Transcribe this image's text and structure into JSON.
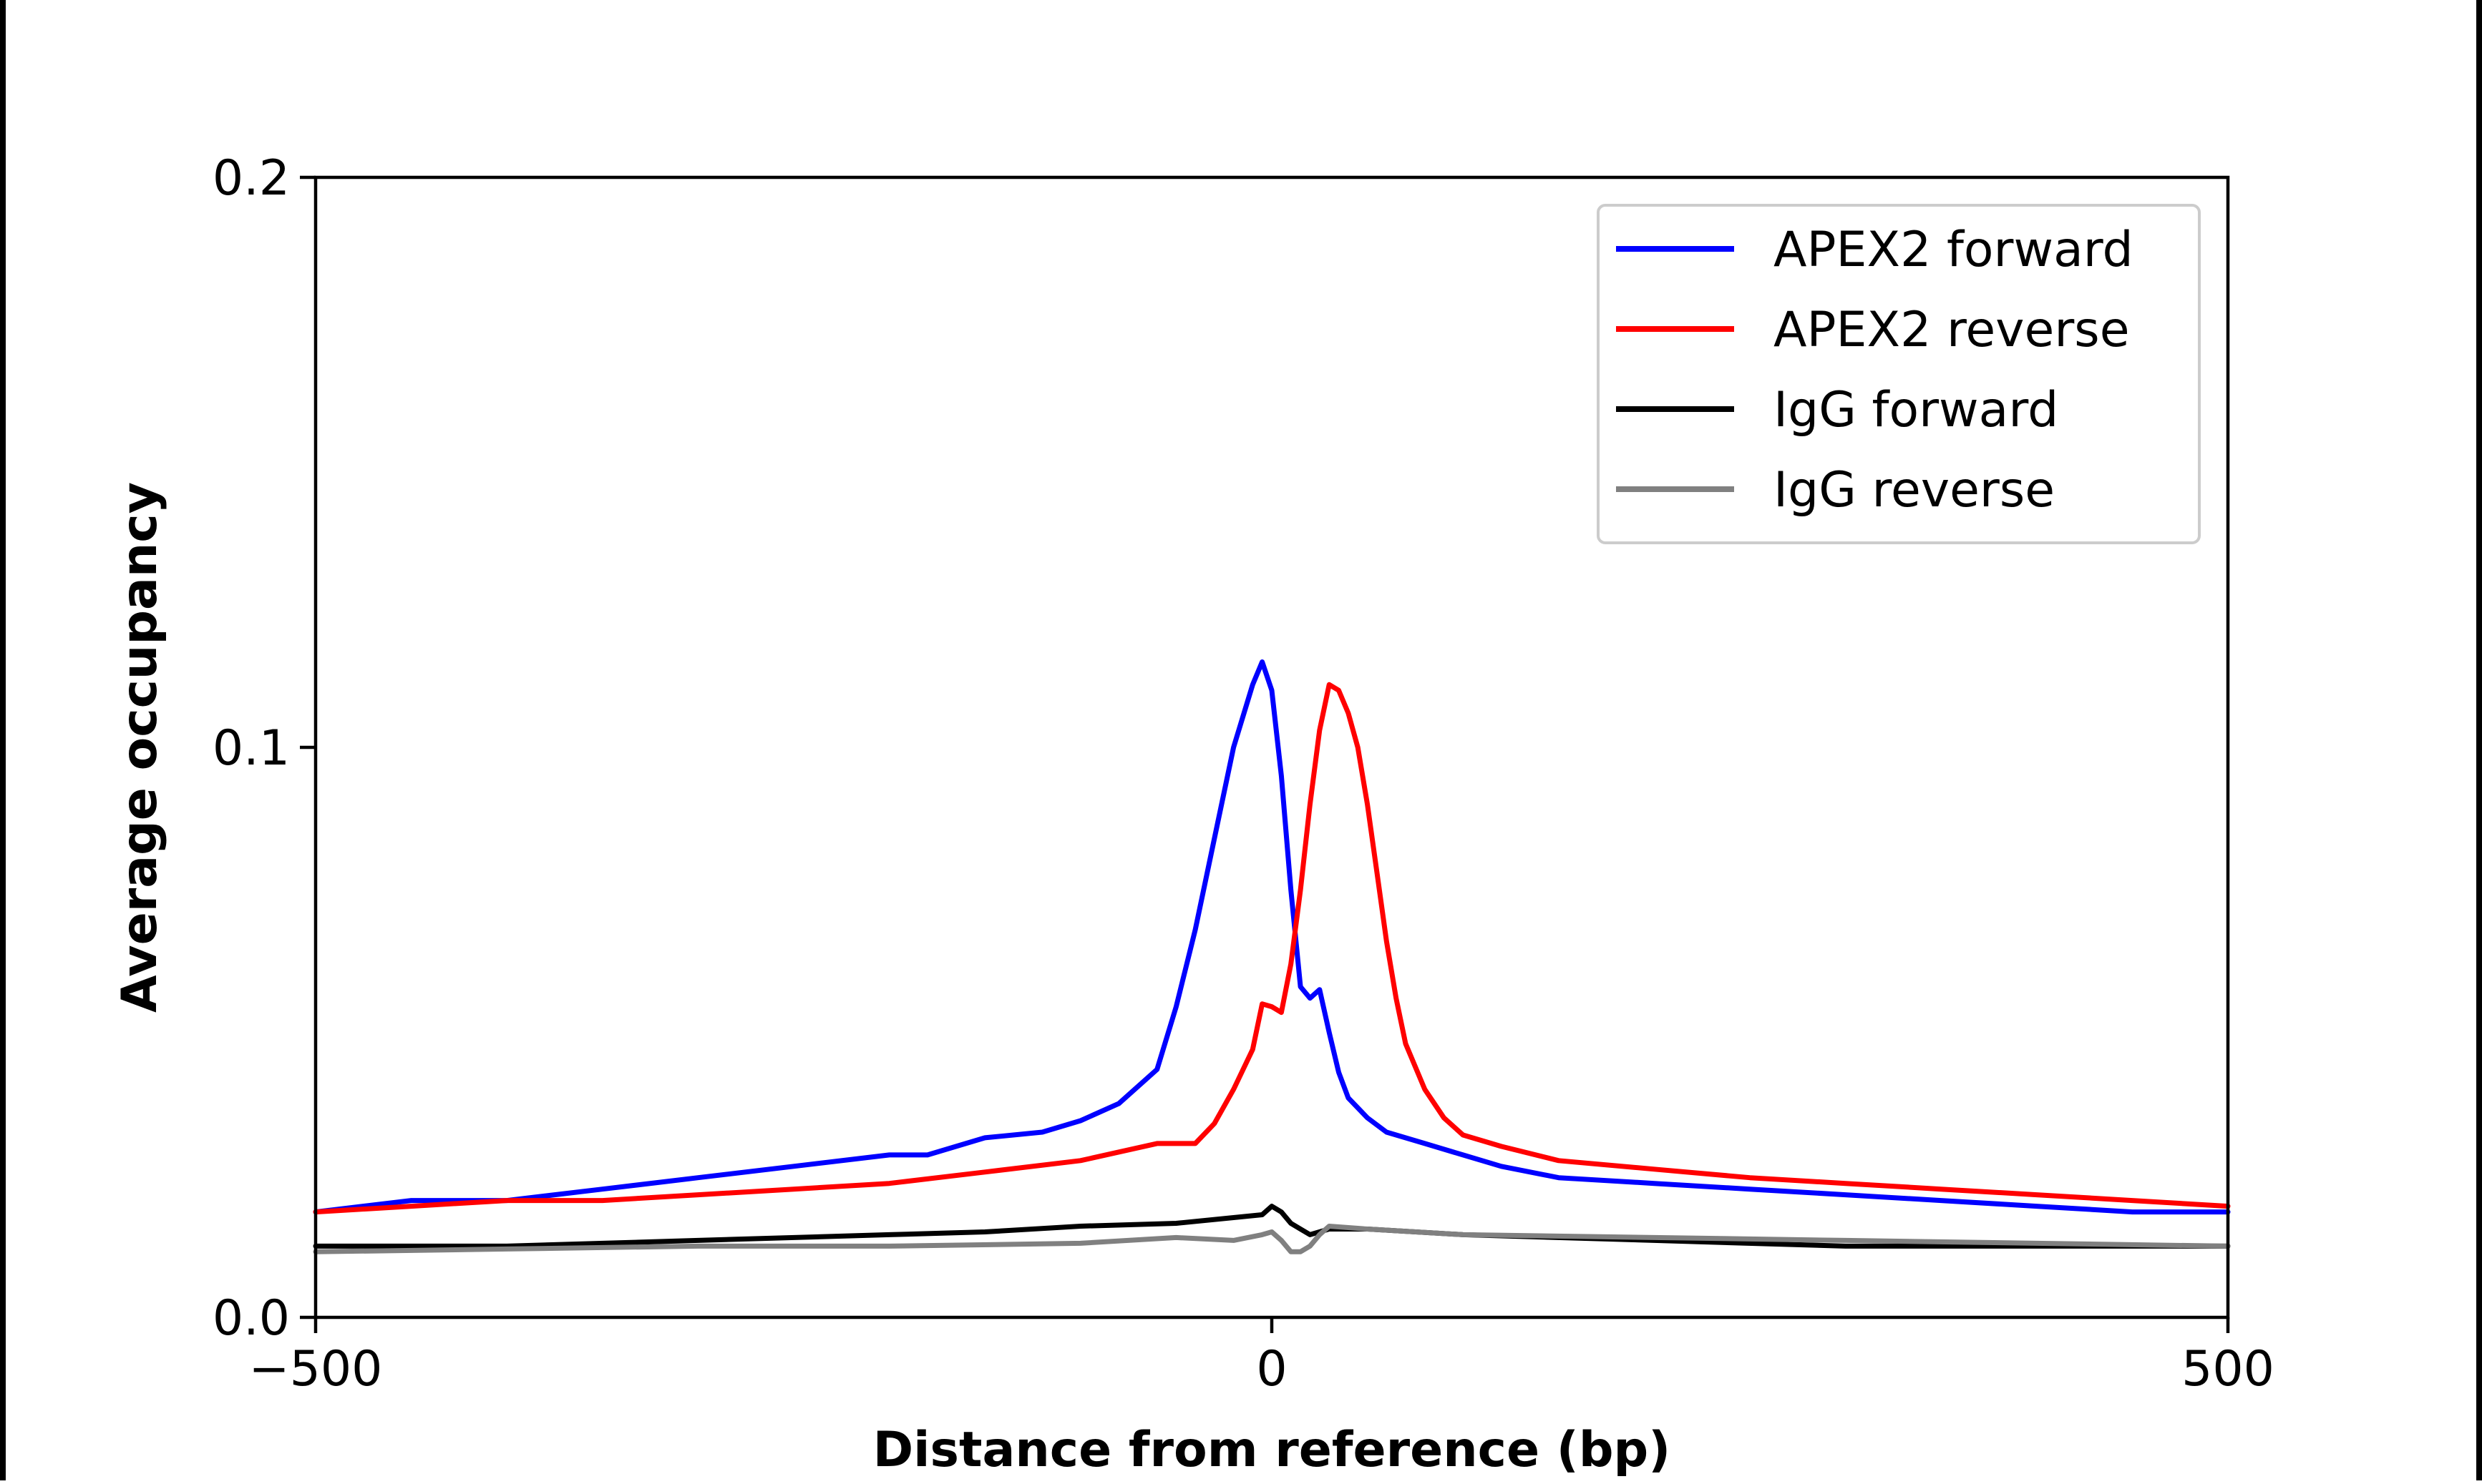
{
  "chart_data": {
    "type": "line",
    "xlabel": "Distance from reference (bp)",
    "ylabel": "Average occupancy",
    "xlim": [
      -500,
      500
    ],
    "ylim": [
      0,
      0.2
    ],
    "xticks": [
      -500,
      0,
      500
    ],
    "xtick_labels": [
      "−500",
      "0",
      "500"
    ],
    "yticks": [
      0,
      0.1,
      0.2
    ],
    "ytick_labels": [
      "0.0",
      "0.1",
      "0.2"
    ],
    "grid": false,
    "legend_position": "top-right",
    "series": [
      {
        "name": "APEX2 forward",
        "color": "#0000ff",
        "x": [
          -500,
          -450,
          -400,
          -350,
          -300,
          -250,
          -200,
          -180,
          -150,
          -120,
          -100,
          -80,
          -60,
          -50,
          -40,
          -30,
          -20,
          -10,
          -5,
          0,
          5,
          10,
          15,
          20,
          25,
          30,
          35,
          40,
          50,
          60,
          80,
          100,
          120,
          150,
          200,
          250,
          300,
          350,
          400,
          450,
          500
        ],
        "y": [
          0.0185,
          0.0205,
          0.0205,
          0.0225,
          0.0245,
          0.0265,
          0.0285,
          0.0285,
          0.0315,
          0.0325,
          0.0345,
          0.0375,
          0.0435,
          0.0545,
          0.068,
          0.084,
          0.1,
          0.111,
          0.115,
          0.11,
          0.095,
          0.075,
          0.058,
          0.056,
          0.0575,
          0.05,
          0.043,
          0.0385,
          0.035,
          0.0325,
          0.0305,
          0.0285,
          0.0265,
          0.0245,
          0.0235,
          0.0225,
          0.0215,
          0.0205,
          0.0195,
          0.0185,
          0.0185
        ]
      },
      {
        "name": "APEX2 reverse",
        "color": "#ff0000",
        "x": [
          -500,
          -450,
          -400,
          -350,
          -300,
          -250,
          -200,
          -150,
          -100,
          -60,
          -40,
          -30,
          -20,
          -10,
          -5,
          0,
          5,
          10,
          15,
          20,
          25,
          30,
          35,
          40,
          45,
          50,
          55,
          60,
          65,
          70,
          80,
          90,
          100,
          120,
          150,
          200,
          250,
          300,
          350,
          400,
          450,
          500
        ],
        "y": [
          0.0185,
          0.0195,
          0.0205,
          0.0205,
          0.0215,
          0.0225,
          0.0235,
          0.0255,
          0.0275,
          0.0305,
          0.0305,
          0.034,
          0.04,
          0.047,
          0.055,
          0.0545,
          0.0535,
          0.062,
          0.075,
          0.09,
          0.103,
          0.111,
          0.11,
          0.106,
          0.1,
          0.09,
          0.078,
          0.066,
          0.056,
          0.048,
          0.04,
          0.035,
          0.032,
          0.03,
          0.0275,
          0.026,
          0.0245,
          0.0235,
          0.0225,
          0.0215,
          0.0205,
          0.0195
        ]
      },
      {
        "name": "IgG forward",
        "color": "#000000",
        "x": [
          -500,
          -400,
          -300,
          -200,
          -150,
          -100,
          -50,
          -20,
          -5,
          0,
          5,
          10,
          15,
          20,
          30,
          50,
          100,
          200,
          300,
          400,
          500
        ],
        "y": [
          0.0125,
          0.0125,
          0.0135,
          0.0145,
          0.015,
          0.016,
          0.0165,
          0.0175,
          0.018,
          0.0195,
          0.0185,
          0.0165,
          0.0155,
          0.0145,
          0.0155,
          0.0155,
          0.0145,
          0.0135,
          0.0125,
          0.0125,
          0.0125
        ]
      },
      {
        "name": "IgG reverse",
        "color": "#808080",
        "x": [
          -500,
          -400,
          -300,
          -200,
          -100,
          -50,
          -20,
          -5,
          0,
          5,
          10,
          15,
          20,
          25,
          30,
          50,
          100,
          200,
          300,
          400,
          500
        ],
        "y": [
          0.0115,
          0.012,
          0.0125,
          0.0125,
          0.013,
          0.014,
          0.0135,
          0.0145,
          0.015,
          0.0135,
          0.0115,
          0.0115,
          0.0125,
          0.0145,
          0.016,
          0.0155,
          0.0145,
          0.014,
          0.0135,
          0.013,
          0.0125
        ]
      }
    ]
  }
}
